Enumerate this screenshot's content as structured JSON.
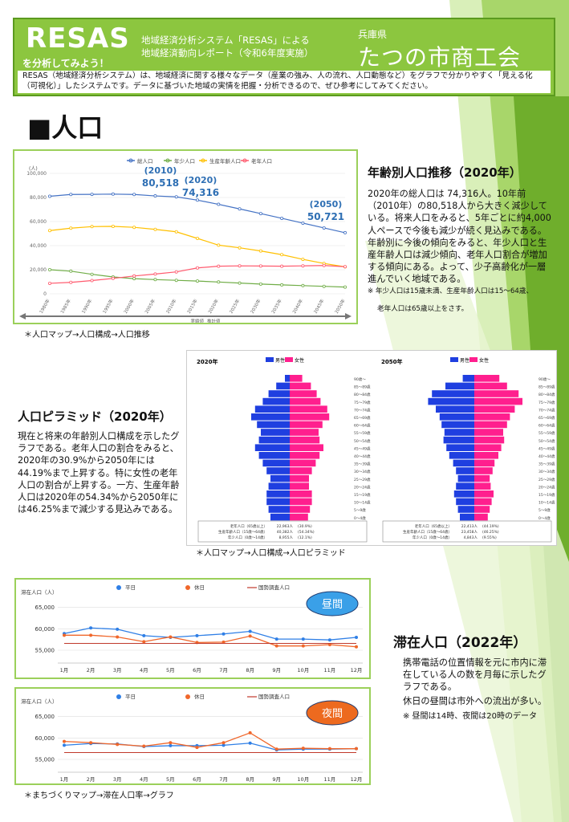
{
  "header": {
    "title": "RESAS",
    "subtitle": "を分析してみよう！",
    "line1": "地域経済分析システム「RESAS」による",
    "line2": "地域経済動向レポート（令和6年度実施）",
    "prefecture": "兵庫県",
    "organization": "たつの市商工会",
    "description": "RESAS（地域経済分析システム）は、地域経済に関する様々なデータ（産業の強み、人の流れ、人口動態など）をグラフで分かりやすく「見える化（可視化）」したシステムです。データに基づいた地域の実情を把握・分析できるので、ぜひ参考にしてみてください。"
  },
  "section_title": "■人口",
  "population_trend": {
    "heading": "年齢別人口推移（2020年）",
    "text": "2020年の総人口は 74,316人。10年前（2010年）の80,518人から大きく減少している。将来人口をみると、5年ごとに約4,000人ペースで今後も減少が続く見込みである。年齢別に今後の傾向をみると、年少人口と生産年齢人口は減少傾向、老年人口割合が増加する傾向にある。よって、少子高齢化が一層進んでいく地域である。",
    "note1": "※ 年少人口は15歳未満、生産年齢人口は15～64歳、",
    "note2": "老年人口は65歳以上をさす。",
    "caption": "＊人口マップ→人口構成→人口推移"
  },
  "pyramid": {
    "heading": "人口ピラミッド（2020年）",
    "text": "現在と将来の年齢別人口構成を示したグラフである。老年人口の割合をみると、2020年の30.9%から2050年には44.19%まで上昇する。特に女性の老年人口の割合が上昇する。一方、生産年齢人口は2020年の54.34%から2050年には46.25%まで減少する見込みである。",
    "caption": "＊人口マップ→人口構成→人口ピラミッド"
  },
  "stay": {
    "heading": "滞在人口（2022年）",
    "text1": "携帯電話の位置情報を元に市内に滞在している人の数を月毎に示したグラフである。",
    "text2": "休日の昼間は市外への流出が多い。",
    "note": "※ 昼間は14時、夜間は20時のデータ",
    "caption": "＊まちづくりマップ→滞在人口率→グラフ"
  },
  "colors": {
    "header_green": "#8cc63f",
    "border_green": "#9bd05a",
    "total": "#4472c4",
    "young": "#70ad47",
    "working": "#ffc000",
    "elderly": "#ff5a6e",
    "male": "#1f3fe0",
    "female": "#ff1f8e",
    "weekday": "#2f7fe6",
    "holiday": "#f0672b",
    "census": "#c0392b",
    "badge_blue": "#3aa0e8",
    "badge_orange": "#ed6a1f"
  },
  "chart_data": [
    {
      "type": "line",
      "id": "population_trend",
      "legend": [
        "総人口",
        "年少人口",
        "生産年齢人口",
        "老年人口"
      ],
      "unit_label": "(人)",
      "x": [
        "1980年",
        "1985年",
        "1990年",
        "1995年",
        "2000年",
        "2005年",
        "2010年",
        "2015年",
        "2020年",
        "2025年",
        "2030年",
        "2035年",
        "2040年",
        "2045年",
        "2050年"
      ],
      "series": [
        {
          "name": "総人口",
          "values": [
            81000,
            82500,
            82600,
            82800,
            82500,
            81300,
            80518,
            77800,
            74316,
            70500,
            66600,
            62700,
            58700,
            54700,
            50721
          ]
        },
        {
          "name": "年少人口",
          "values": [
            20000,
            18800,
            16200,
            14000,
            12600,
            11800,
            11200,
            10600,
            9800,
            8900,
            8100,
            7400,
            6800,
            6200,
            5600
          ]
        },
        {
          "name": "生産年齢人口",
          "values": [
            52500,
            54500,
            55800,
            56000,
            55200,
            53500,
            51500,
            46000,
            40400,
            38200,
            35600,
            32500,
            28600,
            25200,
            22400
          ]
        },
        {
          "name": "老年人口",
          "values": [
            8700,
            9500,
            11000,
            12800,
            14800,
            16400,
            18200,
            21500,
            22900,
            23200,
            23100,
            22900,
            23200,
            23500,
            22500
          ]
        }
      ],
      "yticks": [
        "0",
        "20,000",
        "40,000",
        "60,000",
        "80,000",
        "100,000"
      ],
      "ylim": [
        0,
        100000
      ],
      "annotations": [
        {
          "year": "(2010)",
          "value": "80,518"
        },
        {
          "year": "(2020)",
          "value": "74,316"
        },
        {
          "year": "(2050)",
          "value": "50,721"
        }
      ],
      "footer": [
        "実績値",
        "推計値"
      ]
    },
    {
      "type": "bar",
      "id": "pyramid_2020",
      "title": "2020年",
      "legend": [
        "男性",
        "女性"
      ],
      "age_groups": [
        "0～4歳",
        "5～9歳",
        "10～14歳",
        "15～19歳",
        "20～24歳",
        "25～29歳",
        "30～34歳",
        "35～39歳",
        "40～44歳",
        "45～49歳",
        "50～54歳",
        "55～59歳",
        "60～64歳",
        "65～69歳",
        "70～74歳",
        "75～79歳",
        "80～84歳",
        "85～89歳",
        "90歳～"
      ],
      "male": [
        2.0,
        2.2,
        2.4,
        2.4,
        2.2,
        2.0,
        2.4,
        2.8,
        3.2,
        3.6,
        3.2,
        3.0,
        3.4,
        4.0,
        3.6,
        2.8,
        2.2,
        1.4,
        0.5
      ],
      "female": [
        1.9,
        2.1,
        2.3,
        2.3,
        2.0,
        2.0,
        2.3,
        2.7,
        3.1,
        3.5,
        3.1,
        3.0,
        3.4,
        4.1,
        3.9,
        3.2,
        2.8,
        2.2,
        1.3
      ],
      "summary": [
        {
          "label": "老年人口（65歳以上）",
          "value": "22,963人",
          "pct": "(30.9%)"
        },
        {
          "label": "生産年齢人口（15歳～64歳）",
          "value": "40,382人",
          "pct": "(54.34%)"
        },
        {
          "label": "年少人口（0歳～14歳）",
          "value": "8,955人",
          "pct": "(12.1%)"
        }
      ]
    },
    {
      "type": "bar",
      "id": "pyramid_2050",
      "title": "2050年",
      "legend": [
        "男性",
        "女性"
      ],
      "age_groups": [
        "0～4歳",
        "5～9歳",
        "10～14歳",
        "15～19歳",
        "20～24歳",
        "25～29歳",
        "30～34歳",
        "35～39歳",
        "40～44歳",
        "45～49歳",
        "50～54歳",
        "55～59歳",
        "60～64歳",
        "65～69歳",
        "70～74歳",
        "75～79歳",
        "80～84歳",
        "85～89歳",
        "90歳～"
      ],
      "male": [
        1.5,
        1.7,
        1.9,
        2.1,
        1.9,
        1.7,
        1.9,
        2.2,
        2.6,
        2.9,
        3.2,
        3.1,
        3.4,
        3.6,
        4.0,
        4.8,
        4.4,
        3.0,
        1.2
      ],
      "female": [
        1.4,
        1.6,
        1.8,
        2.0,
        1.7,
        1.6,
        1.9,
        2.1,
        2.5,
        2.8,
        3.1,
        3.0,
        3.4,
        3.7,
        4.2,
        5.0,
        4.6,
        3.4,
        2.6
      ],
      "summary": [
        {
          "label": "老年人口（65歳以上）",
          "value": "22,413人",
          "pct": "(44.19%)"
        },
        {
          "label": "生産年齢人口（15歳～64歳）",
          "value": "23,458人",
          "pct": "(46.25%)"
        },
        {
          "label": "年少人口（0歳～14歳）",
          "value": "4,843人",
          "pct": "(9.55%)"
        }
      ]
    },
    {
      "type": "line",
      "id": "stay_day",
      "badge": "昼間",
      "ylabel": "滞在人口（人）",
      "legend": [
        "平日",
        "休日",
        "国勢調査人口"
      ],
      "x": [
        "1月",
        "2月",
        "3月",
        "4月",
        "5月",
        "6月",
        "7月",
        "8月",
        "9月",
        "10月",
        "11月",
        "12月"
      ],
      "yticks": [
        "55,000",
        "60,000",
        "65,000"
      ],
      "ylim": [
        52000,
        67000
      ],
      "series": [
        {
          "name": "平日",
          "values": [
            58900,
            60200,
            59900,
            58400,
            58000,
            58400,
            58800,
            59400,
            57600,
            57600,
            57400,
            58000
          ]
        },
        {
          "name": "休日",
          "values": [
            58500,
            58500,
            58100,
            57000,
            58100,
            56800,
            56900,
            58300,
            56000,
            56000,
            56300,
            55800
          ]
        },
        {
          "name": "国勢調査人口",
          "values": [
            56600,
            56600,
            56600,
            56600,
            56600,
            56600,
            56600,
            56600,
            56600,
            56600,
            56600,
            56600
          ]
        }
      ]
    },
    {
      "type": "line",
      "id": "stay_night",
      "badge": "夜間",
      "ylabel": "滞在人口（人）",
      "legend": [
        "平日",
        "休日",
        "国勢調査人口"
      ],
      "x": [
        "1月",
        "2月",
        "3月",
        "4月",
        "5月",
        "6月",
        "7月",
        "8月",
        "9月",
        "10月",
        "11月",
        "12月"
      ],
      "yticks": [
        "55,000",
        "60,000",
        "65,000"
      ],
      "ylim": [
        52000,
        67000
      ],
      "series": [
        {
          "name": "平日",
          "values": [
            58300,
            58700,
            58600,
            58000,
            58200,
            58200,
            58300,
            58800,
            57200,
            57400,
            57400,
            57500
          ]
        },
        {
          "name": "休日",
          "values": [
            59200,
            58900,
            58500,
            58100,
            58900,
            57800,
            58900,
            61200,
            57400,
            57600,
            57500,
            57500
          ]
        },
        {
          "name": "国勢調査人口",
          "values": [
            56600,
            56600,
            56600,
            56600,
            56600,
            56600,
            56600,
            56600,
            56600,
            56600,
            56600,
            56600
          ]
        }
      ]
    }
  ]
}
